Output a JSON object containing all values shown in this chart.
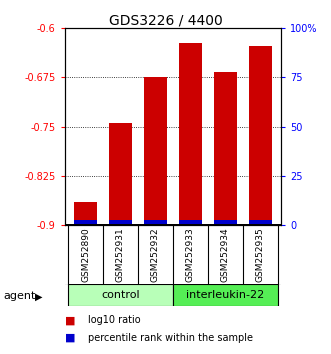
{
  "title": "GDS3226 / 4400",
  "samples": [
    "GSM252890",
    "GSM252931",
    "GSM252932",
    "GSM252933",
    "GSM252934",
    "GSM252935"
  ],
  "log10_ratio": [
    -0.865,
    -0.745,
    -0.674,
    -0.622,
    -0.666,
    -0.627
  ],
  "percentile_rank": [
    2,
    2,
    2,
    2,
    2,
    2
  ],
  "ylim_left": [
    -0.9,
    -0.6
  ],
  "yticks_left": [
    -0.9,
    -0.825,
    -0.75,
    -0.675,
    -0.6
  ],
  "ytick_labels_left": [
    "-0.9",
    "-0.825",
    "-0.75",
    "-0.675",
    "-0.6"
  ],
  "ylim_right": [
    0,
    100
  ],
  "yticks_right": [
    0,
    25,
    50,
    75,
    100
  ],
  "ytick_labels_right": [
    "0",
    "25",
    "50",
    "75",
    "100%"
  ],
  "groups": [
    {
      "label": "control",
      "indices": [
        0,
        1,
        2
      ],
      "color": "#b8ffb8"
    },
    {
      "label": "interleukin-22",
      "indices": [
        3,
        4,
        5
      ],
      "color": "#55ee55"
    }
  ],
  "bar_color_red": "#cc0000",
  "bar_color_blue": "#0000cc",
  "bar_width": 0.65,
  "legend_items": [
    {
      "color": "#cc0000",
      "label": "log10 ratio"
    },
    {
      "color": "#0000cc",
      "label": "percentile rank within the sample"
    }
  ],
  "background_color": "#ffffff",
  "title_fontsize": 10,
  "tick_fontsize": 7,
  "sample_fontsize": 6.5,
  "group_fontsize": 8,
  "legend_fontsize": 7,
  "agent_fontsize": 8
}
